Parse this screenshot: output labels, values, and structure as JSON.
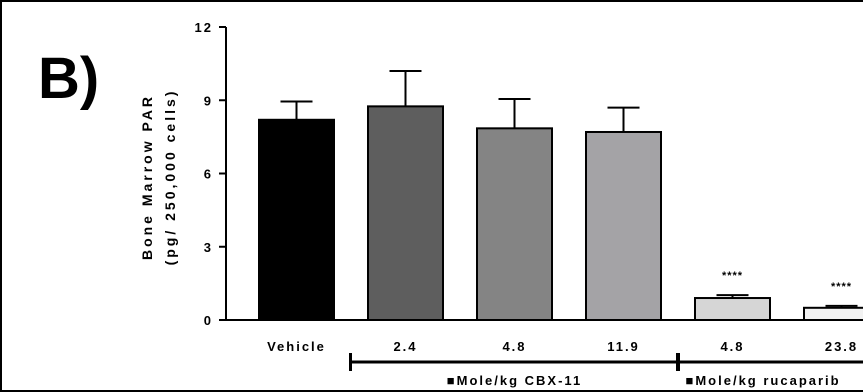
{
  "panel": {
    "letter": "B)"
  },
  "chart_data": {
    "type": "bar",
    "title": "",
    "ylabel_line1": "Bone Marrow PAR",
    "ylabel_line2": "(pg/ 250,000 cells)",
    "xlabel": "",
    "ylim": [
      0,
      12
    ],
    "yticks": [
      0,
      3,
      6,
      9,
      12
    ],
    "ytick_labels": [
      "0",
      "3",
      "6",
      "9",
      "12"
    ],
    "grid": false,
    "categories": [
      "Vehicle",
      "2.4",
      "4.8",
      "11.9",
      "4.8",
      "23.8"
    ],
    "values": [
      8.2,
      8.75,
      7.85,
      7.7,
      0.9,
      0.5
    ],
    "errors": [
      0.75,
      1.45,
      1.2,
      1.0,
      0.12,
      0.08
    ],
    "colors": [
      "#000000",
      "#5e5e5e",
      "#848484",
      "#a4a3a6",
      "#d6d6d6",
      "#f2f2f2"
    ],
    "significance": [
      "",
      "",
      "",
      "",
      "****",
      "****"
    ],
    "groups": [
      {
        "label": "■Mole/kg  CBX-11",
        "first_index": 1,
        "last_index": 3
      },
      {
        "label": "■Mole/kg rucaparib",
        "first_index": 4,
        "last_index": 5
      }
    ]
  }
}
